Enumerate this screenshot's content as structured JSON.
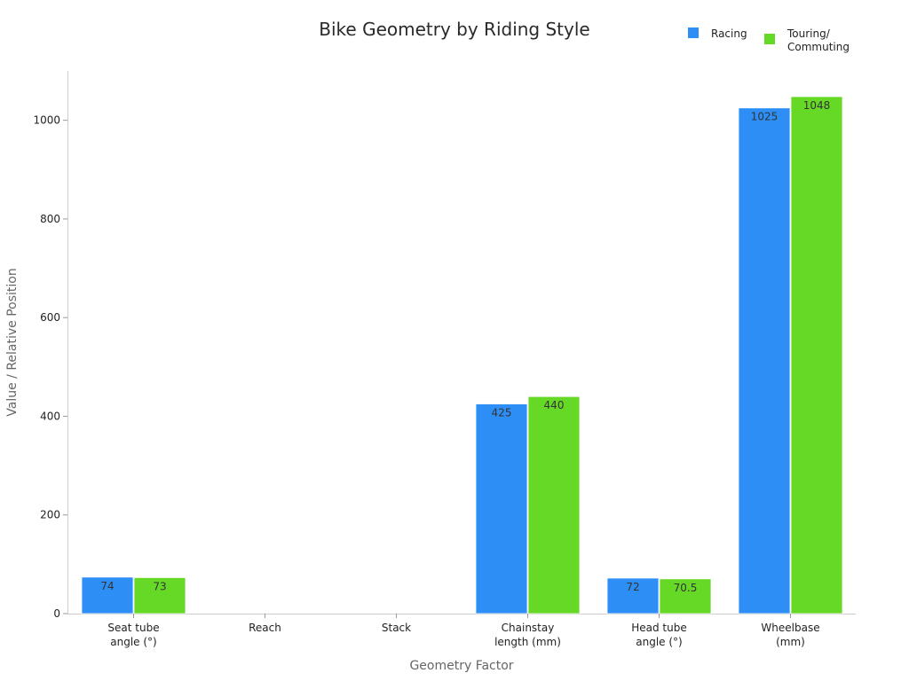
{
  "chart_data": {
    "type": "bar",
    "title": "Bike Geometry by Riding Style",
    "xlabel": "Geometry Factor",
    "ylabel": "Value / Relative Position",
    "categories": [
      [
        "Seat tube",
        "angle (°)"
      ],
      [
        "Reach"
      ],
      [
        "Stack"
      ],
      [
        "Chainstay",
        "length (mm)"
      ],
      [
        "Head tube",
        "angle (°)"
      ],
      [
        "Wheelbase",
        "(mm)"
      ]
    ],
    "series": [
      {
        "name": "Racing",
        "color": "#2d8ff5",
        "values": [
          74,
          null,
          null,
          425,
          72,
          1025
        ],
        "labels": [
          "74",
          "",
          "",
          "425",
          "72",
          "1025"
        ]
      },
      {
        "name_lines": [
          "Touring/",
          "Commuting"
        ],
        "color": "#66d926",
        "values": [
          73,
          null,
          null,
          440,
          70.5,
          1048
        ],
        "labels": [
          "73",
          "",
          "",
          "440",
          "70.5",
          "1048"
        ]
      }
    ],
    "ylim": [
      0,
      1100
    ],
    "yticks": [
      0,
      200,
      400,
      600,
      800,
      1000
    ],
    "grid": false,
    "legend_position": "top-right"
  }
}
